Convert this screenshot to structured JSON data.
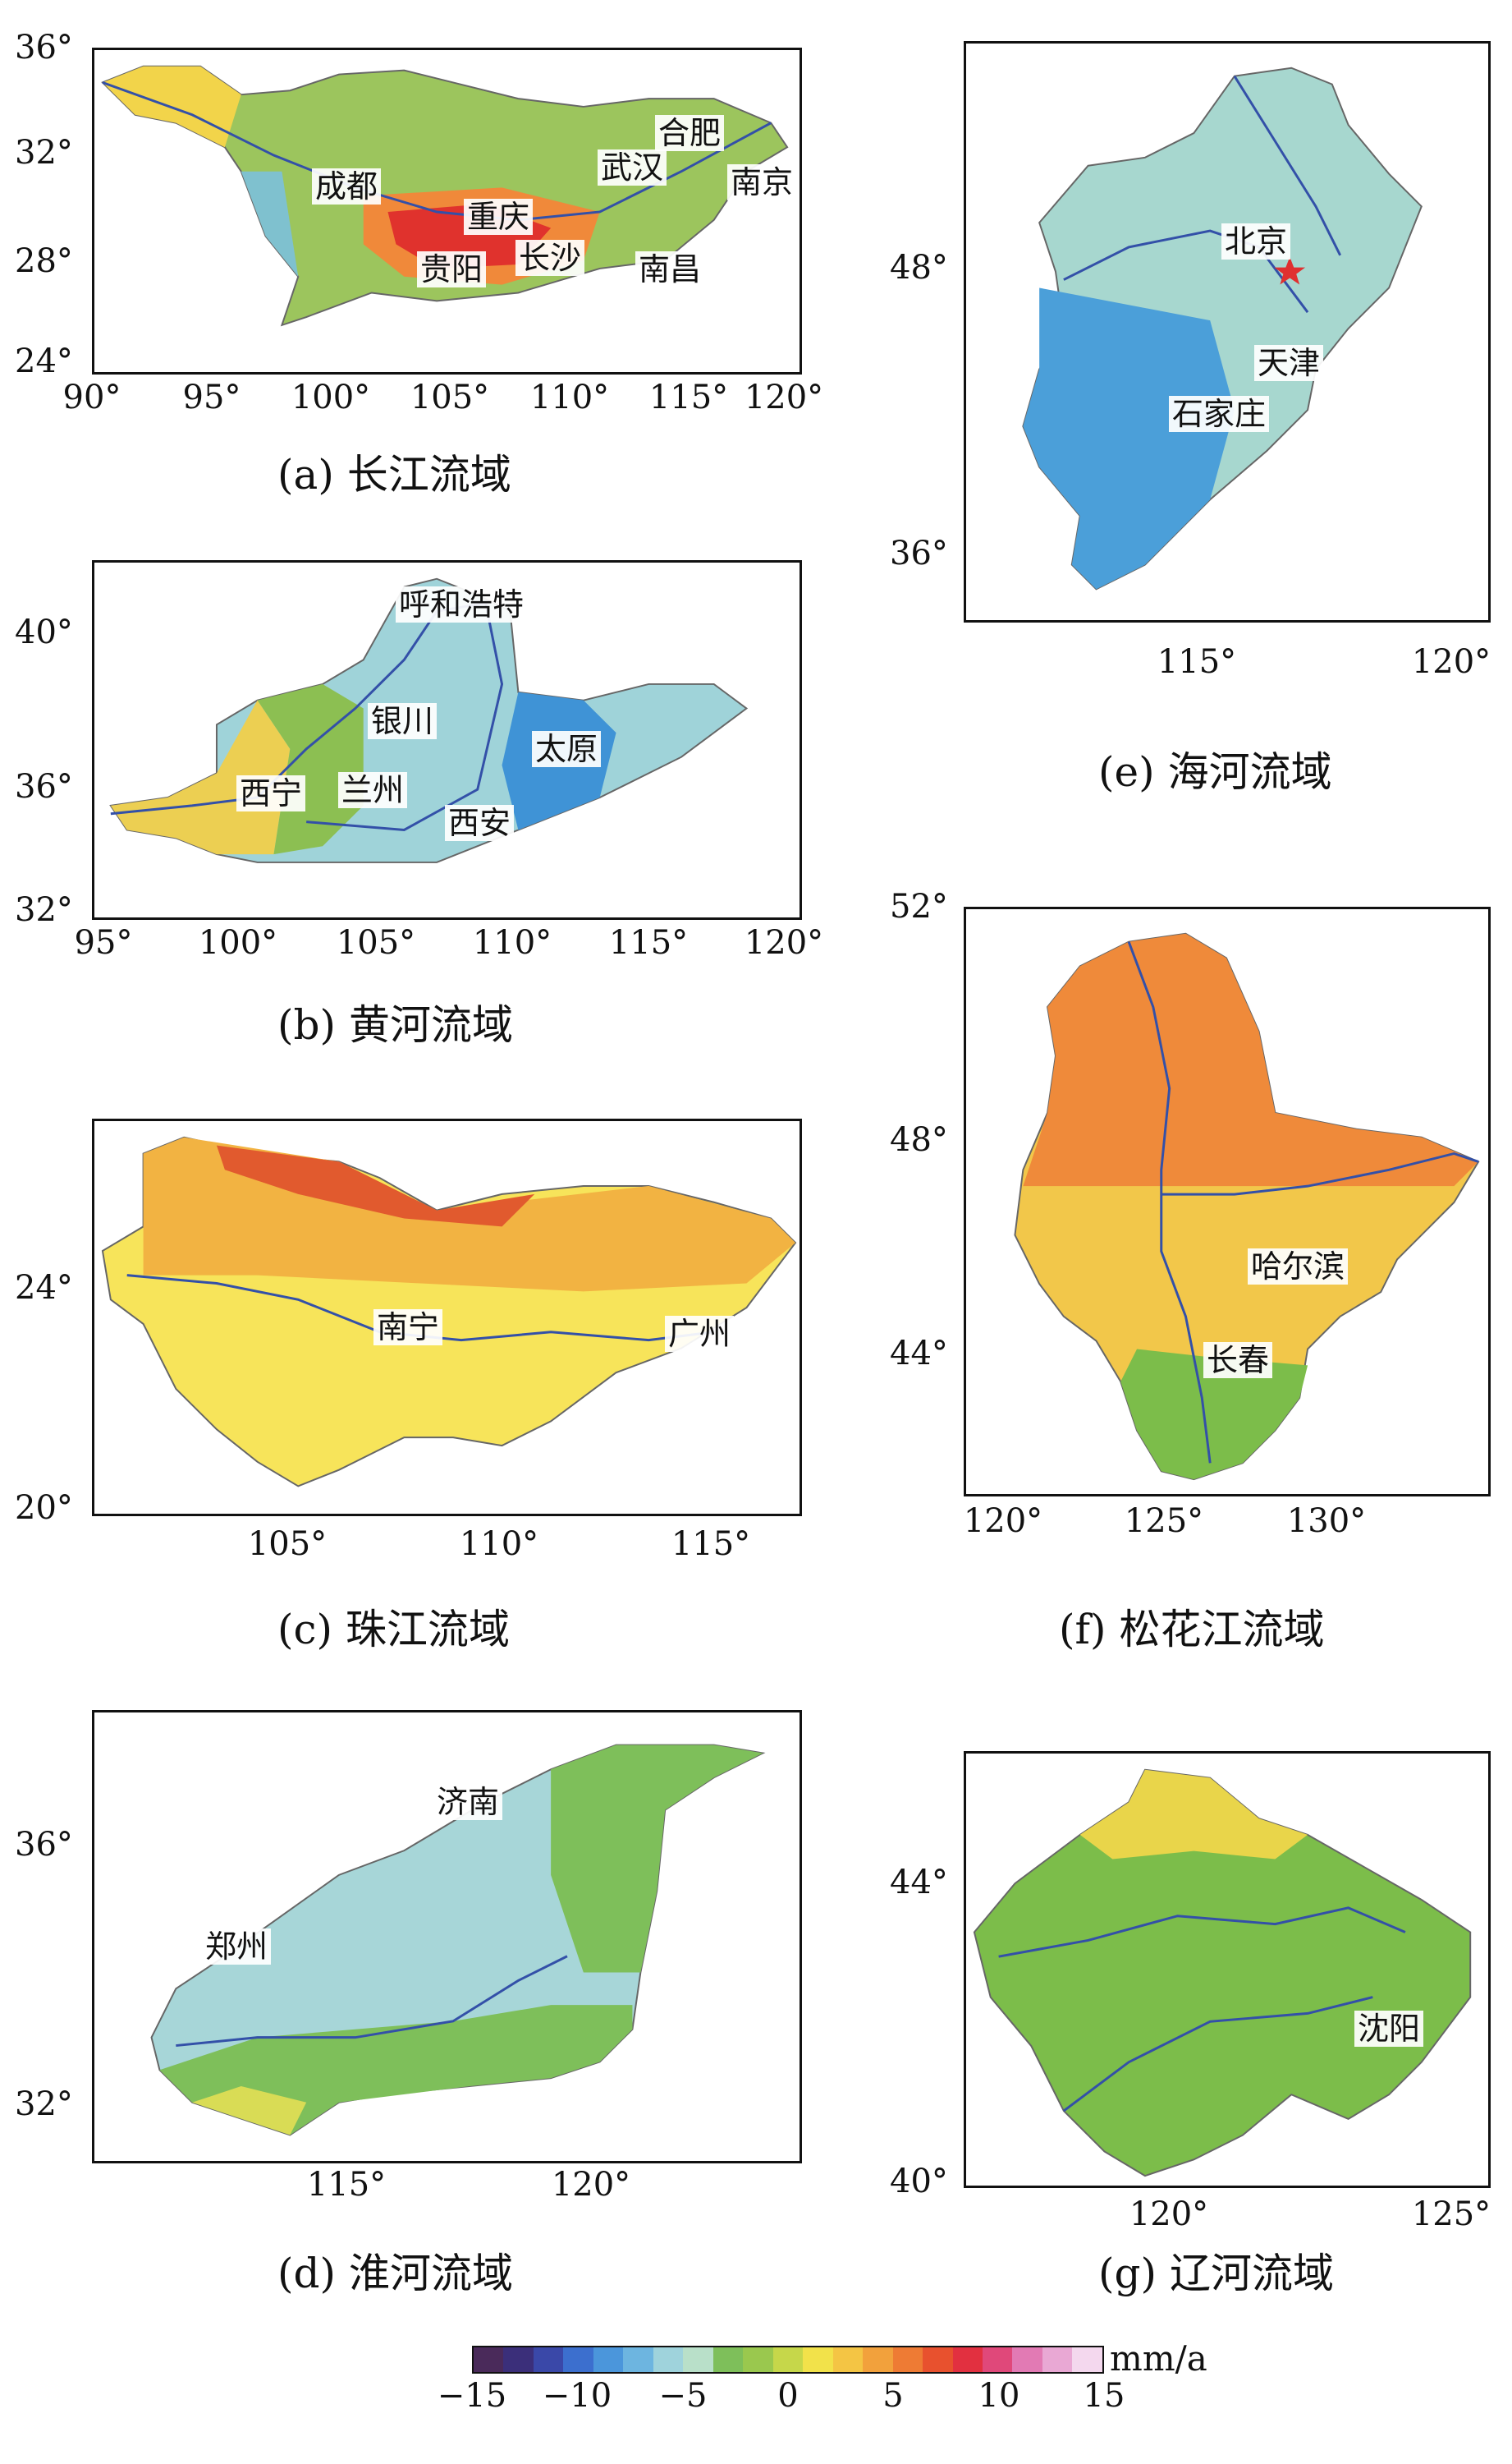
{
  "panels": {
    "a": {
      "caption_tag": "(a)",
      "caption_name": "长江流域",
      "y_ticks": [
        "36°",
        "32°",
        "28°",
        "24°"
      ],
      "x_ticks": [
        "90°",
        "95°",
        "100°",
        "105°",
        "110°",
        "115°",
        "120°"
      ],
      "cities": [
        "成都",
        "重庆",
        "武汉",
        "合肥",
        "南京",
        "贵阳",
        "长沙",
        "南昌"
      ],
      "fill_colors": [
        "#f2d44a",
        "#9cc55d",
        "#7fc1cf",
        "#e0322d",
        "#f0893a"
      ]
    },
    "b": {
      "caption_tag": "(b)",
      "caption_name": "黄河流域",
      "y_ticks": [
        "40°",
        "36°",
        "32°"
      ],
      "x_ticks": [
        "95°",
        "100°",
        "105°",
        "110°",
        "115°",
        "120°"
      ],
      "cities": [
        "呼和浩特",
        "银川",
        "太原",
        "西宁",
        "兰州",
        "西安"
      ],
      "fill_colors": [
        "#eccf52",
        "#8cbf52",
        "#9fd3d9",
        "#3f93d6"
      ]
    },
    "c": {
      "caption_tag": "(c)",
      "caption_name": "珠江流域",
      "y_ticks": [
        "24°",
        "20°"
      ],
      "x_ticks": [
        "105°",
        "110°",
        "115°"
      ],
      "cities": [
        "南宁",
        "广州"
      ],
      "fill_colors": [
        "#f7e45a",
        "#f2b342",
        "#e15a2e"
      ]
    },
    "d": {
      "caption_tag": "(d)",
      "caption_name": "淮河流域",
      "y_ticks": [
        "36°",
        "32°"
      ],
      "x_ticks": [
        "115°",
        "120°"
      ],
      "cities": [
        "济南",
        "郑州"
      ],
      "fill_colors": [
        "#a7d6d8",
        "#7ebf5a",
        "#d9dc55"
      ]
    },
    "e": {
      "caption_tag": "(e)",
      "caption_name": "海河流域",
      "y_ticks": [
        "48°",
        "36°"
      ],
      "x_ticks": [
        "115°",
        "120°"
      ],
      "cities": [
        "北京",
        "天津",
        "石家庄"
      ],
      "fill_colors": [
        "#a7d7cf",
        "#4b9fd9"
      ]
    },
    "f": {
      "caption_tag": "(f)",
      "caption_name": "松花江流域",
      "y_ticks": [
        "52°",
        "48°",
        "44°"
      ],
      "x_ticks": [
        "120°",
        "125°",
        "130°"
      ],
      "cities": [
        "哈尔滨",
        "长春"
      ],
      "fill_colors": [
        "#ef8a3a",
        "#f2c74a",
        "#7cbd4a"
      ]
    },
    "g": {
      "caption_tag": "(g)",
      "caption_name": "辽河流域",
      "y_ticks": [
        "44°",
        "40°"
      ],
      "x_ticks": [
        "120°",
        "125°"
      ],
      "cities": [
        "沈阳"
      ],
      "fill_colors": [
        "#e9d54a",
        "#7cbd4a"
      ]
    }
  },
  "colorbar": {
    "unit": "mm/a",
    "tick_labels": [
      "−15",
      "−10",
      "−5",
      "0",
      "5",
      "10",
      "15"
    ],
    "range": [
      -15,
      15
    ],
    "colors": [
      "#4a2a5a",
      "#3b2f7a",
      "#3a48a8",
      "#3c6fce",
      "#4b96db",
      "#6db5e0",
      "#9fd3dc",
      "#b9e0c9",
      "#7ebf5a",
      "#9ac84e",
      "#c6d74a",
      "#f2e24a",
      "#f4c544",
      "#f2a13c",
      "#ee7b34",
      "#e8512e",
      "#e23040",
      "#e0487a",
      "#e27ab4",
      "#e9a8d4",
      "#f4d8ee"
    ]
  }
}
